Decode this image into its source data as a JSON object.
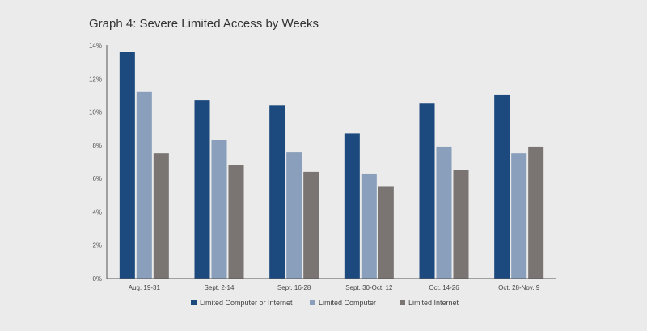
{
  "chart_data": {
    "type": "bar",
    "title": "Graph 4: Severe Limited Access by Weeks",
    "xlabel": "",
    "ylabel": "",
    "categories": [
      "Aug. 19-31",
      "Sept. 2-14",
      "Sept. 16-28",
      "Sept. 30-Oct. 12",
      "Oct. 14-26",
      "Oct. 28-Nov. 9"
    ],
    "series": [
      {
        "name": "Limited Computer or Internet",
        "color": "#1c4a7e",
        "values": [
          13.6,
          10.7,
          10.4,
          8.7,
          10.5,
          11.0
        ]
      },
      {
        "name": "Limited Computer",
        "color": "#8a9fbb",
        "values": [
          11.2,
          8.3,
          7.6,
          6.3,
          7.9,
          7.5
        ]
      },
      {
        "name": "Limited Internet",
        "color": "#7a7573",
        "values": [
          7.5,
          6.8,
          6.4,
          5.5,
          6.5,
          7.9
        ]
      }
    ],
    "ylim": [
      0,
      14
    ],
    "yticks": [
      0,
      2,
      4,
      6,
      8,
      10,
      12,
      14
    ],
    "ytick_labels": [
      "0%",
      "2%",
      "4%",
      "6%",
      "8%",
      "10%",
      "12%",
      "14%"
    ],
    "grid": false,
    "legend_position": "bottom"
  }
}
